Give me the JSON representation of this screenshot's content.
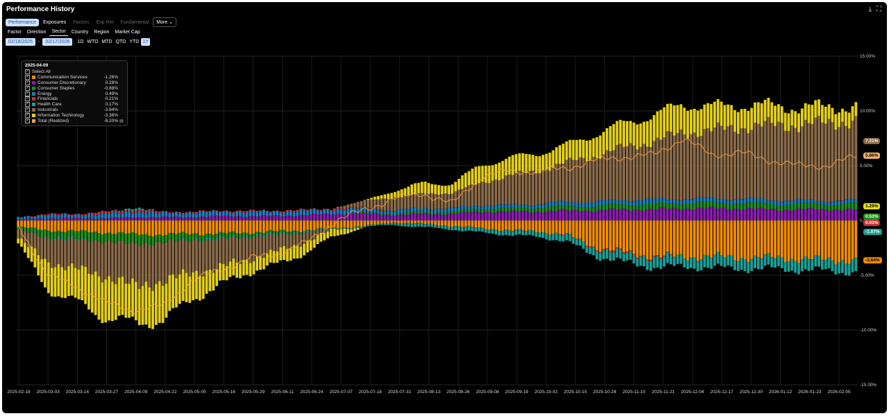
{
  "title": "Performance History",
  "icons": {
    "download": "download-icon",
    "expand": "expand-icon"
  },
  "tabs": [
    {
      "label": "Performance",
      "state": "active"
    },
    {
      "label": "Exposures",
      "state": "normal"
    },
    {
      "label": "Factors",
      "state": "disabled"
    },
    {
      "label": "Exp Ret",
      "state": "disabled"
    },
    {
      "label": "Fundamental",
      "state": "disabled"
    }
  ],
  "more_label": "More ⌄",
  "subtabs": [
    {
      "label": "Factor",
      "active": false
    },
    {
      "label": "Direction",
      "active": false
    },
    {
      "label": "Sector",
      "active": true
    },
    {
      "label": "Country",
      "active": false
    },
    {
      "label": "Region",
      "active": false
    },
    {
      "label": "Market Cap",
      "active": false
    }
  ],
  "date_start": "02/18/2025",
  "date_end": "02/17/2026",
  "date_sep": "-",
  "ranges": [
    {
      "label": "1D",
      "active": false
    },
    {
      "label": "WTD",
      "active": false
    },
    {
      "label": "MTD",
      "active": false
    },
    {
      "label": "QTD",
      "active": false
    },
    {
      "label": "YTD",
      "active": false
    },
    {
      "label": "1Y",
      "active": true
    }
  ],
  "tooltip": {
    "date": "2025-04-09",
    "select_all": "Select All",
    "rows": [
      {
        "name": "Communication Services",
        "value": "-1.26%",
        "color": "#f08c00"
      },
      {
        "name": "Consumer Discretionary",
        "value": "0.28%",
        "color": "#8a1cb0"
      },
      {
        "name": "Consumer Staples",
        "value": "-0.88%",
        "color": "#1f8f1f"
      },
      {
        "name": "Energy",
        "value": "0.49%",
        "color": "#1a7fc0"
      },
      {
        "name": "Financials",
        "value": "0.21%",
        "color": "#c83232"
      },
      {
        "name": "Health Care",
        "value": "0.17%",
        "color": "#1a9e96"
      },
      {
        "name": "Industrials",
        "value": "-3.84%",
        "color": "#8a6a48"
      },
      {
        "name": "Information Technology",
        "value": "-3.36%",
        "color": "#e3cf1a"
      },
      {
        "name": "Total (Realized)",
        "value": "-8.20%",
        "color": "#f5a04a",
        "icon": "table-icon"
      }
    ]
  },
  "right_labels": [
    {
      "text": "7.21%",
      "value": 7.21,
      "bg": "#8a6a48",
      "fg": "#ffffff"
    },
    {
      "text": "5.86%",
      "value": 5.86,
      "bg": "#f5b06a",
      "fg": "#000000"
    },
    {
      "text": "1.29%",
      "value": 1.29,
      "bg": "#e3dc1a",
      "fg": "#000000"
    },
    {
      "text": "0.53%",
      "value": 0.53,
      "bg": "#1f8f1f",
      "fg": "#ffffff"
    },
    {
      "text": "0.03%",
      "value": 0.03,
      "bg": "#c83232",
      "fg": "#ffffff"
    },
    {
      "text": "-1.07%",
      "value": -1.07,
      "bg": "#1a9e96",
      "fg": "#ffffff"
    },
    {
      "text": "-3.64%",
      "value": -3.64,
      "bg": "#f08c00",
      "fg": "#000000"
    }
  ],
  "chart_data": {
    "type": "bar",
    "stacked": true,
    "ylim": [
      -15,
      15
    ],
    "yticks": [
      "15.00%",
      "10.00%",
      "5.00%",
      "0.00%",
      "-5.00%",
      "-10.00%",
      "-15.00%"
    ],
    "ytick_values": [
      15,
      10,
      5,
      0,
      -5,
      -10,
      -15
    ],
    "xticks": [
      "2025-02-18",
      "2025-03-03",
      "2025-03-14",
      "2025-03-27",
      "2025-04-09",
      "2025-04-22",
      "2025-05-05",
      "2025-05-16",
      "2025-05-29",
      "2025-06-11",
      "2025-06-24",
      "2025-07-07",
      "2025-07-18",
      "2025-07-31",
      "2025-08-13",
      "2025-08-26",
      "2025-09-08",
      "2025-09-19",
      "2025-10-02",
      "2025-10-15",
      "2025-10-28",
      "2025-11-10",
      "2025-11-21",
      "2025-12-04",
      "2025-12-17",
      "2025-12-30",
      "2026-01-12",
      "2026-01-23",
      "2026-02-05"
    ],
    "dates": [
      "2025-02-18",
      "2025-03-03",
      "2025-03-14",
      "2025-03-27",
      "2025-04-09",
      "2025-04-22",
      "2025-05-05",
      "2025-05-16",
      "2025-05-29",
      "2025-06-11",
      "2025-06-24",
      "2025-07-07",
      "2025-07-18",
      "2025-07-31",
      "2025-08-13",
      "2025-08-26",
      "2025-09-08",
      "2025-09-19",
      "2025-10-02",
      "2025-10-15",
      "2025-10-28",
      "2025-11-10",
      "2025-11-21",
      "2025-12-04",
      "2025-12-17",
      "2025-12-30",
      "2026-01-12",
      "2026-01-23",
      "2026-02-05",
      "2026-02-17"
    ],
    "series": [
      {
        "name": "Communication Services",
        "color": "#f08c00",
        "values": [
          -0.6,
          -0.9,
          -1.0,
          -1.1,
          -1.26,
          -1.3,
          -1.2,
          -1.2,
          -1.1,
          -1.0,
          -0.9,
          -0.7,
          -0.5,
          -0.2,
          -0.3,
          -0.5,
          -0.7,
          -0.9,
          -1.0,
          -1.3,
          -2.5,
          -2.9,
          -3.3,
          -3.3,
          -3.3,
          -3.4,
          -3.4,
          -3.5,
          -3.6,
          -3.64
        ]
      },
      {
        "name": "Consumer Discretionary",
        "color": "#8a1cb0",
        "values": [
          0.1,
          0.2,
          0.2,
          0.2,
          0.28,
          0.3,
          0.3,
          0.4,
          0.4,
          0.4,
          0.5,
          0.6,
          0.6,
          0.5,
          0.6,
          0.6,
          0.8,
          0.8,
          0.8,
          0.9,
          0.9,
          1.0,
          1.0,
          1.1,
          1.1,
          1.1,
          1.0,
          1.0,
          1.0,
          1.0
        ]
      },
      {
        "name": "Consumer Staples",
        "color": "#1f8f1f",
        "values": [
          -0.2,
          -0.6,
          -0.7,
          -0.8,
          -0.88,
          -0.7,
          -0.5,
          -0.4,
          -0.3,
          -0.2,
          -0.1,
          0.0,
          0.1,
          0.1,
          0.2,
          0.2,
          0.3,
          0.3,
          0.4,
          0.4,
          0.4,
          0.5,
          0.5,
          0.5,
          0.5,
          0.5,
          0.5,
          0.5,
          0.5,
          0.53
        ]
      },
      {
        "name": "Energy",
        "color": "#1a7fc0",
        "values": [
          0.2,
          0.3,
          0.3,
          0.4,
          0.49,
          0.4,
          0.4,
          0.4,
          0.4,
          0.4,
          0.4,
          0.4,
          0.4,
          0.3,
          0.3,
          0.3,
          0.3,
          0.3,
          0.3,
          0.4,
          0.4,
          0.4,
          0.4,
          0.4,
          0.4,
          0.4,
          0.4,
          0.3,
          0.3,
          0.3
        ]
      },
      {
        "name": "Financials",
        "color": "#c83232",
        "values": [
          0.0,
          0.1,
          0.1,
          0.2,
          0.21,
          0.1,
          0.1,
          0.1,
          0.1,
          0.1,
          0.1,
          0.1,
          0.1,
          0.0,
          0.0,
          0.0,
          0.0,
          0.0,
          0.0,
          0.0,
          -0.1,
          -0.1,
          -0.1,
          0.0,
          0.0,
          0.0,
          0.0,
          0.0,
          0.0,
          0.03
        ]
      },
      {
        "name": "Health Care",
        "color": "#1a9e96",
        "values": [
          0.0,
          -0.1,
          -0.1,
          0.0,
          0.17,
          0.0,
          -0.1,
          -0.1,
          -0.1,
          -0.1,
          -0.1,
          -0.1,
          -0.1,
          -0.2,
          -0.3,
          -0.3,
          -0.4,
          -0.4,
          -0.5,
          -0.6,
          -0.7,
          -0.8,
          -0.9,
          -0.9,
          -1.0,
          -1.0,
          -1.0,
          -1.0,
          -1.0,
          -1.07
        ]
      },
      {
        "name": "Industrials",
        "color": "#8a6a48",
        "values": [
          -0.8,
          -2.2,
          -2.6,
          -3.2,
          -3.84,
          -3.6,
          -3.0,
          -2.6,
          -2.0,
          -1.5,
          -0.8,
          0.1,
          0.6,
          1.2,
          1.3,
          1.4,
          2.0,
          2.7,
          3.0,
          3.6,
          4.2,
          4.8,
          5.3,
          6.0,
          6.2,
          6.5,
          6.8,
          6.9,
          7.1,
          7.21
        ]
      },
      {
        "name": "Information Technology",
        "color": "#e3cf1a",
        "values": [
          -0.5,
          -2.5,
          -3.0,
          -3.8,
          -3.36,
          -3.6,
          -2.4,
          -1.6,
          -1.2,
          -1.2,
          -1.0,
          -0.6,
          0.0,
          0.6,
          1.0,
          0.8,
          1.6,
          1.6,
          1.6,
          1.6,
          2.0,
          2.2,
          2.4,
          2.6,
          2.2,
          2.0,
          1.8,
          1.6,
          1.5,
          1.29
        ]
      }
    ],
    "total": {
      "name": "Total (Realized)",
      "color": "#f5a04a",
      "values": [
        -0.5,
        -5.0,
        -6.0,
        -7.5,
        -8.2,
        -7.8,
        -5.5,
        -4.5,
        -3.5,
        -3.0,
        -2.0,
        0.0,
        1.0,
        2.0,
        2.5,
        1.5,
        4.0,
        4.5,
        4.5,
        4.8,
        5.5,
        5.8,
        6.0,
        7.5,
        6.0,
        6.2,
        5.5,
        5.0,
        5.0,
        5.86
      ]
    }
  }
}
